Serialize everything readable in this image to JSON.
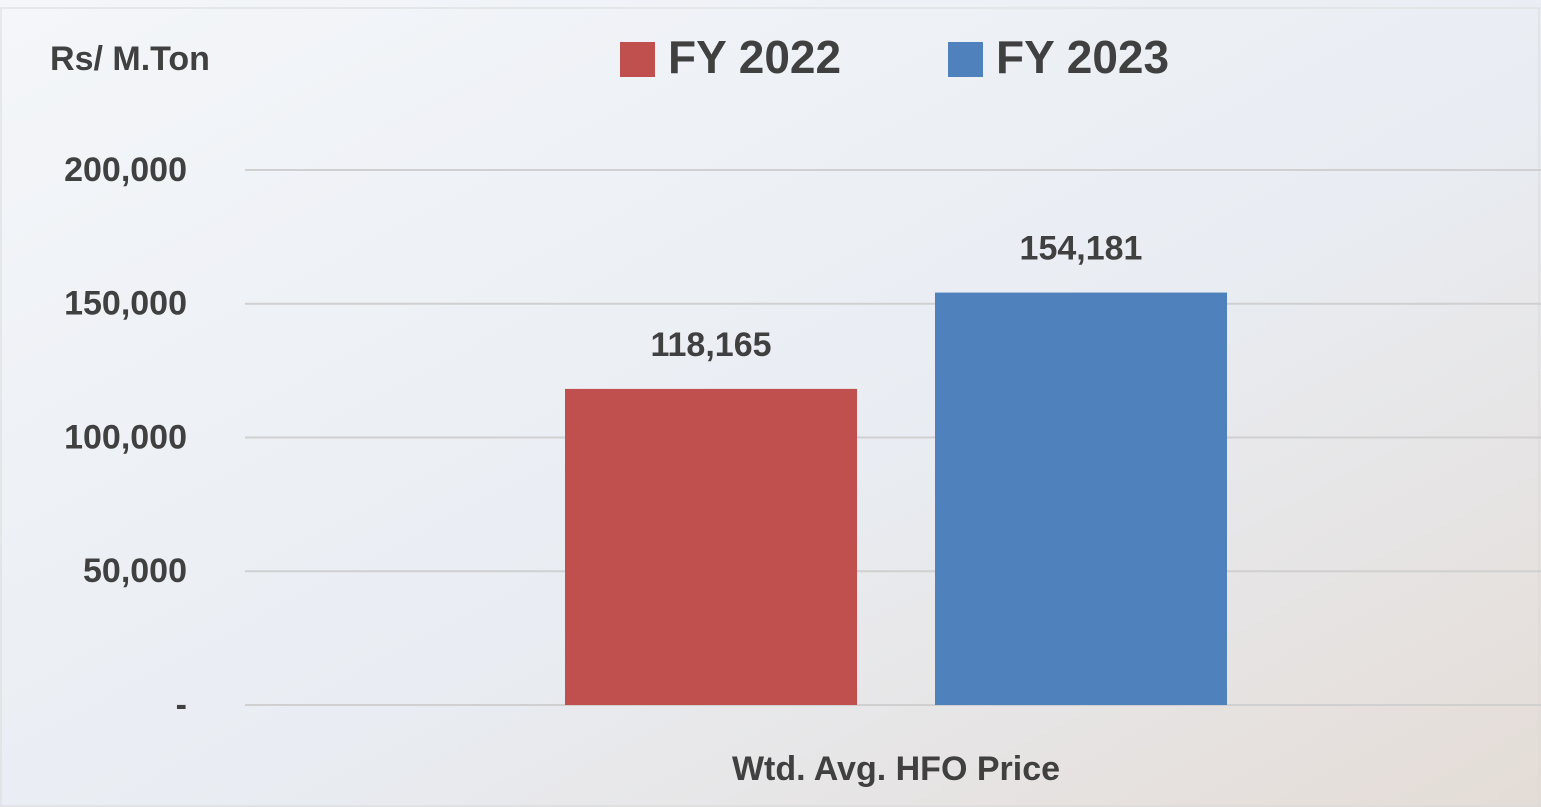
{
  "chart_data": {
    "type": "bar",
    "ylabel": "Rs/ M.Ton",
    "categories": [
      "Wtd. Avg. HFO Price"
    ],
    "series": [
      {
        "name": "FY 2022",
        "color": "#c0504d",
        "values": [
          118165
        ],
        "value_labels": [
          "118,165"
        ]
      },
      {
        "name": "FY 2023",
        "color": "#4f81bd",
        "values": [
          154181
        ],
        "value_labels": [
          "154,181"
        ]
      }
    ],
    "ylim": [
      0,
      200000
    ],
    "yticks": [
      {
        "value": 0,
        "label": "-"
      },
      {
        "value": 50000,
        "label": "50,000"
      },
      {
        "value": 100000,
        "label": "100,000"
      },
      {
        "value": 150000,
        "label": "150,000"
      },
      {
        "value": 200000,
        "label": "200,000"
      }
    ],
    "grid": true,
    "legend": "top"
  }
}
